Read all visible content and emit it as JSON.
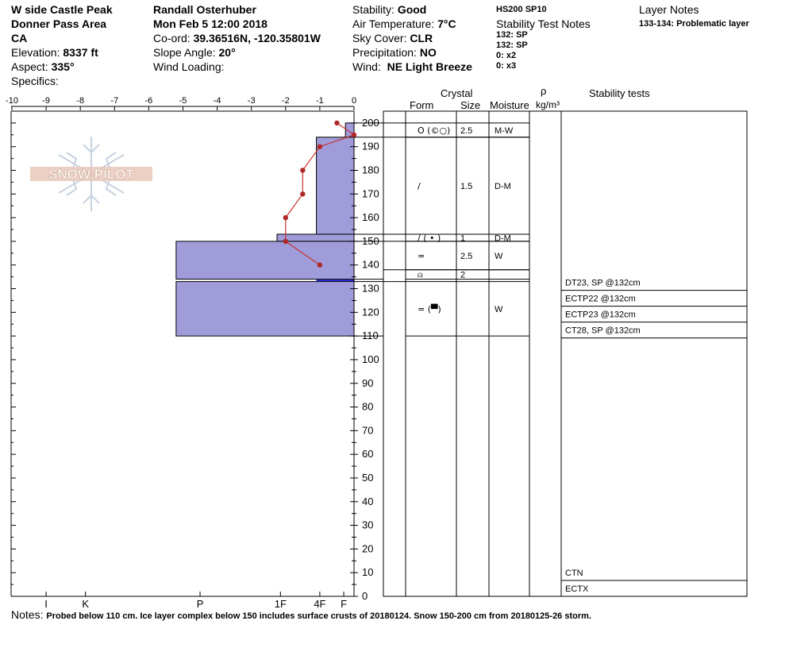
{
  "header": {
    "col1": {
      "site": "W side Castle Peak",
      "area": "Donner Pass Area",
      "state": "CA",
      "elevation_label": "Elevation:",
      "elevation_value": "8337 ft",
      "aspect_label": "Aspect:",
      "aspect_value": "335°",
      "specifics_label": "Specifics:"
    },
    "col2": {
      "observer": "Randall Osterhuber",
      "datetime": "Mon Feb 5 12:00 2018",
      "coord_label": "Co-ord:",
      "coord_value": "39.36516N, -120.35801W",
      "slope_label": "Slope Angle:",
      "slope_value": "20°",
      "wind_loading_label": "Wind Loading:"
    },
    "col3": {
      "stability_label": "Stability:",
      "stability_value": "Good",
      "air_temp_label": "Air Temperature:",
      "air_temp_value": "7°C",
      "sky_label": "Sky Cover:",
      "sky_value": "CLR",
      "precip_label": "Precipitation:",
      "precip_value": "NO",
      "wind_label": "Wind:",
      "wind_value": "NE Light Breeze"
    },
    "col4": {
      "hs": "HS200  SP10",
      "stability_notes_title": "Stability Test Notes",
      "notes": [
        "132: SP",
        "132: SP",
        "0: x2",
        "0: x3"
      ]
    },
    "col5": {
      "layer_notes_title": "Layer Notes",
      "layer_note": "133-134: Problematic layer"
    }
  },
  "table_headers": {
    "crystal": "Crystal",
    "form": "Form",
    "size": "Size",
    "moisture": "Moisture",
    "rho": "ρ",
    "density_unit": "kg/m³",
    "stability_tests": "Stability tests"
  },
  "footer": {
    "notes_label": "Notes:",
    "notes_text": "Probed below 110 cm. Ice layer complex below 150 includes surface crusts of 20180124.  Snow 150-200 cm from 20180125-26 storm."
  },
  "watermark": {
    "text": "SNOW PILOT"
  },
  "colors": {
    "hardness_fill": "#9f9cd9",
    "temp_line": "#c83232",
    "temp_point": "#b02828",
    "problem_layer": "#2020c8"
  },
  "chart_data": {
    "type": "snow_profile",
    "temperature_axis": {
      "ticks": [
        -10,
        -9,
        -8,
        -7,
        -6,
        -5,
        -4,
        -3,
        -2,
        -1,
        0
      ],
      "range": [
        -10,
        0
      ]
    },
    "height_axis": {
      "range": [
        0,
        205
      ],
      "ticks": [
        0,
        10,
        20,
        30,
        40,
        50,
        60,
        70,
        80,
        90,
        100,
        110,
        120,
        130,
        140,
        150,
        160,
        170,
        180,
        190,
        200
      ]
    },
    "hardness_axis": {
      "labels": [
        "I",
        "K",
        "P",
        "1F",
        "4F",
        "F"
      ],
      "positions": [
        -9.0,
        -7.85,
        -4.5,
        -2.15,
        -1.0,
        -0.3
      ]
    },
    "temperature_profile": [
      {
        "height": 200,
        "temp": -0.5
      },
      {
        "height": 195,
        "temp": 0.0
      },
      {
        "height": 190,
        "temp": -1.0
      },
      {
        "height": 180,
        "temp": -1.5
      },
      {
        "height": 170,
        "temp": -1.5
      },
      {
        "height": 160,
        "temp": -2.0
      },
      {
        "height": 150,
        "temp": -2.0
      },
      {
        "height": 140,
        "temp": -1.0
      }
    ],
    "hardness_layers": [
      {
        "top": 200,
        "bottom": 194,
        "hardness": -0.25
      },
      {
        "top": 194,
        "bottom": 153,
        "hardness": -1.1
      },
      {
        "top": 153,
        "bottom": 150,
        "hardness": -2.25
      },
      {
        "top": 150,
        "bottom": 134,
        "hardness": -5.2
      },
      {
        "top": 133,
        "bottom": 110,
        "hardness": -5.2
      }
    ],
    "problem_layer": {
      "top": 134,
      "bottom": 133
    },
    "layers": [
      {
        "top": 200,
        "bottom": 194,
        "form": "O (©○)",
        "size": "2.5",
        "moisture": "M-W"
      },
      {
        "top": 194,
        "bottom": 153,
        "form": "/",
        "size": "1.5",
        "moisture": "D-M"
      },
      {
        "top": 153,
        "bottom": 150,
        "form": "/ ( • )",
        "size": "1",
        "moisture": "D-M"
      },
      {
        "top": 150,
        "bottom": 138,
        "form": "=",
        "size": "2.5",
        "moisture": "W"
      },
      {
        "top": 138,
        "bottom": 134,
        "form": "⍝",
        "size": "2",
        "moisture": ""
      },
      {
        "top": 133,
        "bottom": 110,
        "form": "= (▀)",
        "size": "",
        "moisture": "W"
      }
    ],
    "stability_tests": [
      {
        "label": "DT23, SP @132cm",
        "height": 132
      },
      {
        "label": "ECTP22 @132cm",
        "height": 132
      },
      {
        "label": "ECTP23 @132cm",
        "height": 132
      },
      {
        "label": "CT28, SP @132cm",
        "height": 132
      },
      {
        "label": "CTN",
        "height": 0
      },
      {
        "label": "ECTX",
        "height": 0
      }
    ]
  }
}
